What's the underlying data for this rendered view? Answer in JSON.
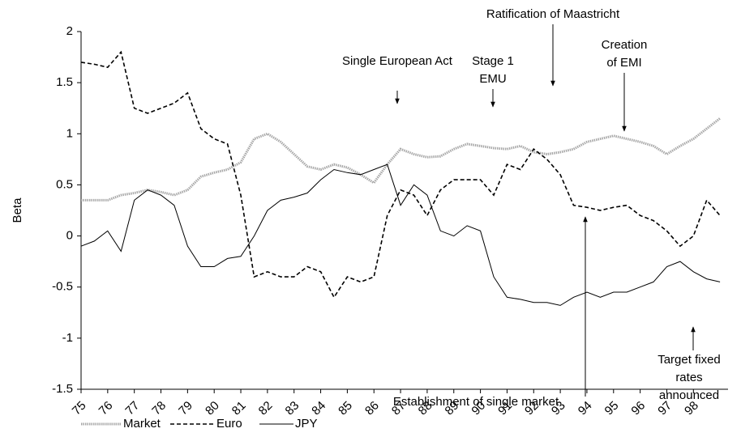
{
  "chart_data": {
    "type": "line",
    "y_label": "Beta",
    "x": [
      75,
      75.5,
      76,
      76.5,
      77,
      77.5,
      78,
      78.5,
      79,
      79.5,
      80,
      80.5,
      81,
      81.5,
      82,
      82.5,
      83,
      83.5,
      84,
      84.5,
      85,
      85.5,
      86,
      86.5,
      87,
      87.5,
      88,
      88.5,
      89,
      89.5,
      90,
      90.5,
      91,
      91.5,
      92,
      92.5,
      93,
      93.5,
      94,
      94.5,
      95,
      95.5,
      96,
      96.5,
      97,
      97.5,
      98,
      98.5,
      99
    ],
    "series": [
      {
        "name": "Market",
        "color": "#a8a8a8",
        "style": "thick",
        "values": [
          0.35,
          0.35,
          0.35,
          0.4,
          0.42,
          0.45,
          0.43,
          0.4,
          0.45,
          0.58,
          0.62,
          0.65,
          0.72,
          0.95,
          1.0,
          0.92,
          0.8,
          0.68,
          0.65,
          0.7,
          0.67,
          0.6,
          0.52,
          0.7,
          0.85,
          0.8,
          0.77,
          0.78,
          0.85,
          0.9,
          0.88,
          0.86,
          0.85,
          0.88,
          0.82,
          0.8,
          0.82,
          0.85,
          0.92,
          0.95,
          0.98,
          0.95,
          0.92,
          0.88,
          0.8,
          0.88,
          0.95,
          1.05,
          1.15
        ]
      },
      {
        "name": "Euro",
        "color": "#000000",
        "style": "dashed",
        "values": [
          1.7,
          1.68,
          1.65,
          1.8,
          1.25,
          1.2,
          1.25,
          1.3,
          1.4,
          1.05,
          0.95,
          0.9,
          0.4,
          -0.4,
          -0.35,
          -0.4,
          -0.4,
          -0.3,
          -0.35,
          -0.6,
          -0.4,
          -0.45,
          -0.4,
          0.2,
          0.45,
          0.4,
          0.2,
          0.45,
          0.55,
          0.55,
          0.55,
          0.4,
          0.7,
          0.65,
          0.85,
          0.75,
          0.6,
          0.3,
          0.28,
          0.25,
          0.28,
          0.3,
          0.2,
          0.15,
          0.05,
          -0.1,
          0.0,
          0.35,
          0.2
        ]
      },
      {
        "name": "JPY",
        "color": "#000000",
        "style": "solid",
        "values": [
          -0.1,
          -0.05,
          0.05,
          -0.15,
          0.35,
          0.45,
          0.4,
          0.3,
          -0.1,
          -0.3,
          -0.3,
          -0.22,
          -0.2,
          0.0,
          0.25,
          0.35,
          0.38,
          0.42,
          0.55,
          0.65,
          0.62,
          0.6,
          0.65,
          0.7,
          0.3,
          0.5,
          0.4,
          0.05,
          0.0,
          0.1,
          0.05,
          -0.4,
          -0.6,
          -0.62,
          -0.65,
          -0.65,
          -0.68,
          -0.6,
          -0.55,
          -0.6,
          -0.55,
          -0.55,
          -0.5,
          -0.45,
          -0.3,
          -0.25,
          -0.35,
          -0.42,
          -0.45
        ]
      }
    ],
    "xlim": [
      75,
      99.3
    ],
    "xticks": [
      75,
      76,
      77,
      78,
      79,
      80,
      81,
      82,
      83,
      84,
      85,
      86,
      87,
      88,
      89,
      90,
      91,
      92,
      93,
      94,
      95,
      96,
      97,
      98
    ],
    "ylim": [
      -1.5,
      2
    ],
    "yticks": [
      -1.5,
      -1,
      -0.5,
      0,
      0.5,
      1,
      1.5,
      2
    ],
    "grid": false,
    "legend": "bottom",
    "annotations": [
      {
        "lines": [
          "Single European Act"
        ]
      },
      {
        "lines": [
          "Stage 1",
          "EMU"
        ]
      },
      {
        "lines": [
          "Ratification of Maastricht"
        ]
      },
      {
        "lines": [
          "Creation",
          "of EMI"
        ]
      },
      {
        "lines": [
          "Establishment of single market"
        ]
      },
      {
        "lines": [
          "Target fixed",
          "rates",
          "announced"
        ]
      }
    ]
  }
}
